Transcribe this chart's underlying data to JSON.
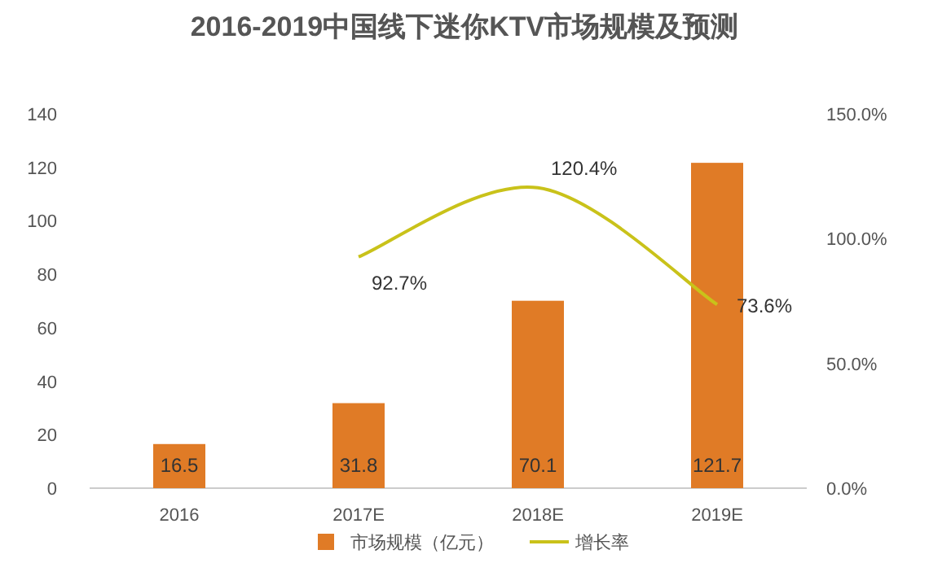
{
  "chart_data": {
    "type": "bar",
    "title": "2016-2019中国线下迷你KTV市场规模及预测",
    "categories": [
      "2016",
      "2017E",
      "2018E",
      "2019E"
    ],
    "series": [
      {
        "name": "市场规模（亿元）",
        "color": "#e07b26",
        "values": [
          16.5,
          31.8,
          70.1,
          121.7
        ],
        "value_labels": [
          "16.5",
          "31.8",
          "70.1",
          "121.7"
        ]
      },
      {
        "name": "增长率",
        "type": "line",
        "axis": "y2",
        "color": "#c9c21a",
        "values": [
          null,
          92.7,
          120.4,
          73.6
        ],
        "value_labels": [
          null,
          "92.7%",
          "120.4%",
          "73.6%"
        ]
      }
    ],
    "ylim": [
      0,
      140
    ],
    "yticks": [
      0,
      20,
      40,
      60,
      80,
      100,
      120,
      140
    ],
    "y2lim": [
      0,
      150
    ],
    "y2ticks": [
      {
        "value": 0,
        "label": "0.0%"
      },
      {
        "value": 50,
        "label": "50.0%"
      },
      {
        "value": 100,
        "label": "100.0%"
      },
      {
        "value": 150,
        "label": "150.0%"
      }
    ],
    "grid": false,
    "legend": "bottom",
    "marker": "none",
    "line_style": "solid"
  }
}
